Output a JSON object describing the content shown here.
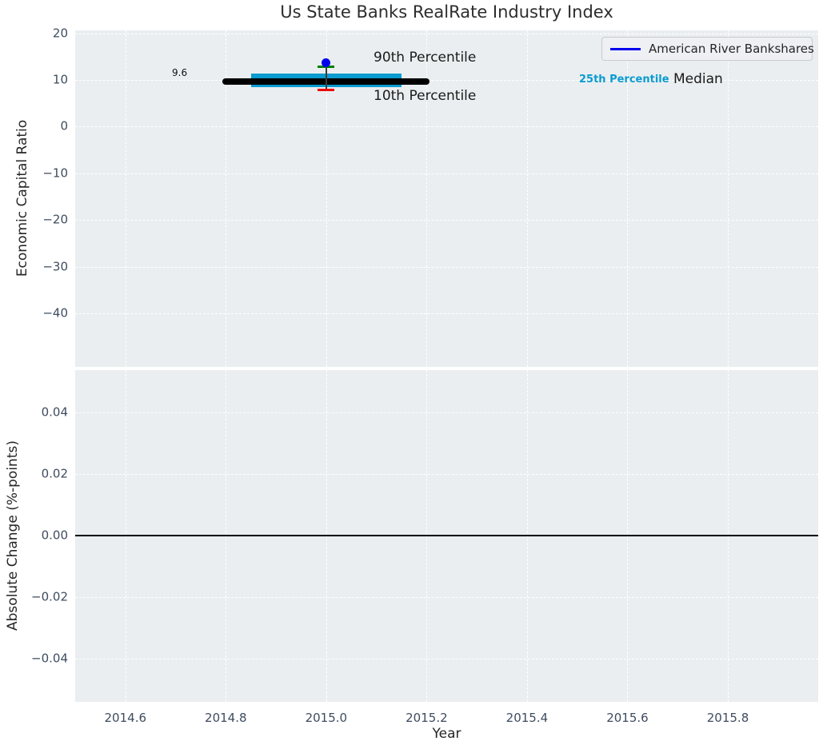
{
  "title": "Us State Banks RealRate Industry Index",
  "legend": {
    "label": "American River Bankshares",
    "line_color": "#0000ee"
  },
  "annotations": {
    "median_value_label": "9.6",
    "p90_label": "90th Percentile",
    "p10_label": "10th Percentile",
    "p25_label": "25th Percentile",
    "median_label": "Median"
  },
  "colors": {
    "band": "#0a9bd0",
    "median_line": "#000000",
    "dot": "#0000ee",
    "cap_top": "#008000",
    "cap_bottom": "#ed0000",
    "errorbar_line": "#3a3a3a",
    "panel_bg": "#eaeef0",
    "grid": "#ffffff",
    "tick": "#3e4c5f",
    "zero_line": "#000000"
  },
  "chart_data": [
    {
      "type": "line",
      "panel": "top",
      "title": "Us State Banks RealRate Industry Index",
      "ylabel": "Economic Capital Ratio",
      "xlim": [
        2014.5,
        2015.98
      ],
      "ylim": [
        -51.4,
        20.6
      ],
      "grid": "dashed-white",
      "yticks": [
        20,
        10,
        0,
        -10,
        -20,
        -30,
        -40
      ],
      "ytick_labels": [
        "20",
        "10",
        "0",
        "−10",
        "−20",
        "−30",
        "−40"
      ],
      "xticks": [
        2014.6,
        2014.8,
        2015.0,
        2015.2,
        2015.4,
        2015.6,
        2015.8
      ],
      "series": [
        {
          "name": "Median",
          "type": "line",
          "x": [
            2014.8,
            2015.2
          ],
          "y": [
            9.6,
            9.6
          ]
        },
        {
          "name": "25th-75th Percentile Band",
          "type": "band",
          "x": [
            2014.85,
            2015.15
          ],
          "y_low": 8.5,
          "y_high": 11.3
        },
        {
          "name": "American River Bankshares",
          "type": "point_with_percentile_caps",
          "x": 2015.0,
          "y": 13.6,
          "p90": 12.9,
          "p10": 7.8
        }
      ]
    },
    {
      "type": "line",
      "panel": "bottom",
      "ylabel": "Absolute Change (%-points)",
      "xlabel": "Year",
      "xlim": [
        2014.5,
        2015.98
      ],
      "ylim": [
        -0.054,
        0.0538
      ],
      "grid": "dashed-white",
      "yticks": [
        0.04,
        0.02,
        0.0,
        -0.02,
        -0.04
      ],
      "ytick_labels": [
        "0.04",
        "0.02",
        "0.00",
        "−0.02",
        "−0.04"
      ],
      "xticks": [
        2014.6,
        2014.8,
        2015.0,
        2015.2,
        2015.4,
        2015.6,
        2015.8
      ],
      "xtick_labels": [
        "2014.6",
        "2014.8",
        "2015.0",
        "2015.2",
        "2015.4",
        "2015.6",
        "2015.8"
      ],
      "zero_line_y": 0.0
    }
  ]
}
